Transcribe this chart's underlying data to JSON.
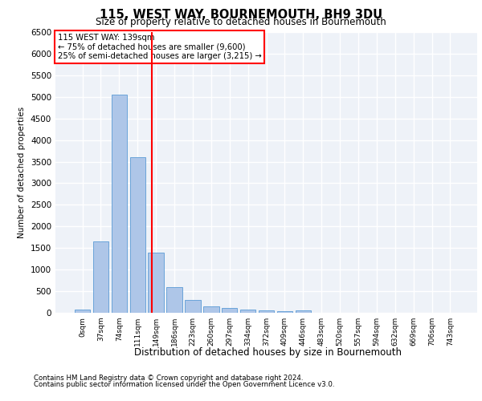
{
  "title": "115, WEST WAY, BOURNEMOUTH, BH9 3DU",
  "subtitle": "Size of property relative to detached houses in Bournemouth",
  "xlabel": "Distribution of detached houses by size in Bournemouth",
  "ylabel": "Number of detached properties",
  "footnote1": "Contains HM Land Registry data © Crown copyright and database right 2024.",
  "footnote2": "Contains public sector information licensed under the Open Government Licence v3.0.",
  "annotation_title": "115 WEST WAY: 139sqm",
  "annotation_line1": "← 75% of detached houses are smaller (9,600)",
  "annotation_line2": "25% of semi-detached houses are larger (3,215) →",
  "bar_labels": [
    "0sqm",
    "37sqm",
    "74sqm",
    "111sqm",
    "149sqm",
    "186sqm",
    "223sqm",
    "260sqm",
    "297sqm",
    "334sqm",
    "372sqm",
    "409sqm",
    "446sqm",
    "483sqm",
    "520sqm",
    "557sqm",
    "594sqm",
    "632sqm",
    "669sqm",
    "706sqm",
    "743sqm"
  ],
  "bar_values": [
    75,
    1650,
    5050,
    3600,
    1400,
    600,
    300,
    155,
    120,
    80,
    50,
    30,
    55,
    0,
    0,
    0,
    0,
    0,
    0,
    0,
    0
  ],
  "bar_color": "#aec6e8",
  "bar_edgecolor": "#5b9bd5",
  "vline_x": 3.78,
  "vline_color": "red",
  "ylim": [
    0,
    6500
  ],
  "yticks": [
    0,
    500,
    1000,
    1500,
    2000,
    2500,
    3000,
    3500,
    4000,
    4500,
    5000,
    5500,
    6000,
    6500
  ],
  "bg_color": "#eef2f8",
  "grid_color": "#ffffff",
  "annotation_box_color": "#ffffff",
  "annotation_box_edgecolor": "red"
}
